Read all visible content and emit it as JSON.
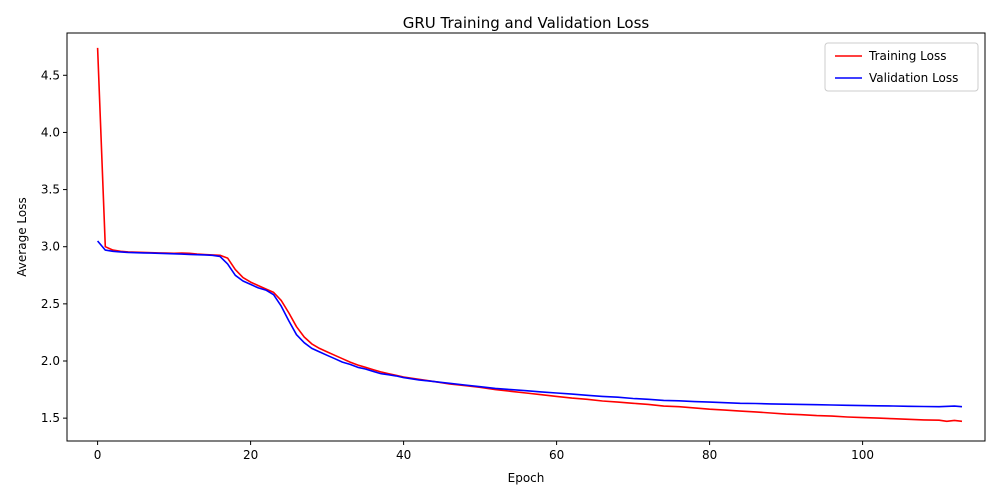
{
  "chart_data": {
    "type": "line",
    "title": "GRU Training and Validation Loss",
    "xlabel": "Epoch",
    "ylabel": "Average Loss",
    "xlim": [
      -4,
      116
    ],
    "ylim": [
      1.3,
      4.87
    ],
    "xticks": [
      0,
      20,
      40,
      60,
      80,
      100
    ],
    "yticks": [
      1.5,
      2.0,
      2.5,
      3.0,
      3.5,
      4.0,
      4.5
    ],
    "xtick_labels": [
      "0",
      "20",
      "40",
      "60",
      "80",
      "100"
    ],
    "ytick_labels": [
      "1.5",
      "2.0",
      "2.5",
      "3.0",
      "3.5",
      "4.0",
      "4.5"
    ],
    "grid": false,
    "legend_position": "top-right",
    "series": [
      {
        "name": "Training Loss",
        "color": "#ff0000",
        "points": [
          [
            0,
            4.74
          ],
          [
            1,
            3.0
          ],
          [
            2,
            2.97
          ],
          [
            3,
            2.96
          ],
          [
            4,
            2.955
          ],
          [
            5,
            2.952
          ],
          [
            6,
            2.95
          ],
          [
            7,
            2.948
          ],
          [
            8,
            2.946
          ],
          [
            9,
            2.944
          ],
          [
            10,
            2.942
          ],
          [
            11,
            2.945
          ],
          [
            12,
            2.942
          ],
          [
            13,
            2.935
          ],
          [
            14,
            2.932
          ],
          [
            15,
            2.928
          ],
          [
            16,
            2.925
          ],
          [
            17,
            2.9
          ],
          [
            18,
            2.8
          ],
          [
            19,
            2.73
          ],
          [
            20,
            2.69
          ],
          [
            21,
            2.66
          ],
          [
            22,
            2.63
          ],
          [
            23,
            2.6
          ],
          [
            24,
            2.53
          ],
          [
            25,
            2.42
          ],
          [
            26,
            2.3
          ],
          [
            27,
            2.21
          ],
          [
            28,
            2.15
          ],
          [
            29,
            2.11
          ],
          [
            30,
            2.08
          ],
          [
            31,
            2.05
          ],
          [
            32,
            2.02
          ],
          [
            33,
            1.99
          ],
          [
            34,
            1.965
          ],
          [
            35,
            1.945
          ],
          [
            36,
            1.925
          ],
          [
            37,
            1.905
          ],
          [
            38,
            1.89
          ],
          [
            39,
            1.875
          ],
          [
            40,
            1.86
          ],
          [
            42,
            1.84
          ],
          [
            44,
            1.82
          ],
          [
            46,
            1.8
          ],
          [
            48,
            1.785
          ],
          [
            50,
            1.77
          ],
          [
            52,
            1.75
          ],
          [
            54,
            1.735
          ],
          [
            56,
            1.72
          ],
          [
            58,
            1.705
          ],
          [
            60,
            1.69
          ],
          [
            62,
            1.675
          ],
          [
            64,
            1.665
          ],
          [
            66,
            1.65
          ],
          [
            68,
            1.64
          ],
          [
            70,
            1.63
          ],
          [
            72,
            1.62
          ],
          [
            74,
            1.605
          ],
          [
            76,
            1.6
          ],
          [
            78,
            1.59
          ],
          [
            80,
            1.578
          ],
          [
            82,
            1.57
          ],
          [
            84,
            1.562
          ],
          [
            86,
            1.555
          ],
          [
            88,
            1.545
          ],
          [
            90,
            1.535
          ],
          [
            92,
            1.53
          ],
          [
            94,
            1.522
          ],
          [
            96,
            1.518
          ],
          [
            98,
            1.51
          ],
          [
            100,
            1.505
          ],
          [
            102,
            1.5
          ],
          [
            104,
            1.495
          ],
          [
            106,
            1.49
          ],
          [
            108,
            1.485
          ],
          [
            110,
            1.482
          ],
          [
            111,
            1.472
          ],
          [
            112,
            1.48
          ],
          [
            113,
            1.472
          ]
        ]
      },
      {
        "name": "Validation Loss",
        "color": "#0000ff",
        "points": [
          [
            0,
            3.05
          ],
          [
            1,
            2.97
          ],
          [
            2,
            2.96
          ],
          [
            3,
            2.955
          ],
          [
            4,
            2.95
          ],
          [
            5,
            2.948
          ],
          [
            6,
            2.946
          ],
          [
            7,
            2.944
          ],
          [
            8,
            2.942
          ],
          [
            9,
            2.94
          ],
          [
            10,
            2.938
          ],
          [
            11,
            2.935
          ],
          [
            12,
            2.933
          ],
          [
            13,
            2.93
          ],
          [
            14,
            2.928
          ],
          [
            15,
            2.925
          ],
          [
            16,
            2.915
          ],
          [
            17,
            2.85
          ],
          [
            18,
            2.75
          ],
          [
            19,
            2.7
          ],
          [
            20,
            2.67
          ],
          [
            21,
            2.64
          ],
          [
            22,
            2.62
          ],
          [
            23,
            2.58
          ],
          [
            24,
            2.48
          ],
          [
            25,
            2.35
          ],
          [
            26,
            2.23
          ],
          [
            27,
            2.16
          ],
          [
            28,
            2.11
          ],
          [
            29,
            2.08
          ],
          [
            30,
            2.05
          ],
          [
            31,
            2.02
          ],
          [
            32,
            1.99
          ],
          [
            33,
            1.97
          ],
          [
            34,
            1.945
          ],
          [
            35,
            1.93
          ],
          [
            36,
            1.91
          ],
          [
            37,
            1.89
          ],
          [
            38,
            1.88
          ],
          [
            39,
            1.87
          ],
          [
            40,
            1.855
          ],
          [
            42,
            1.835
          ],
          [
            44,
            1.82
          ],
          [
            46,
            1.805
          ],
          [
            48,
            1.79
          ],
          [
            50,
            1.775
          ],
          [
            52,
            1.76
          ],
          [
            54,
            1.75
          ],
          [
            56,
            1.74
          ],
          [
            58,
            1.73
          ],
          [
            60,
            1.72
          ],
          [
            62,
            1.71
          ],
          [
            64,
            1.7
          ],
          [
            66,
            1.69
          ],
          [
            68,
            1.683
          ],
          [
            70,
            1.672
          ],
          [
            72,
            1.665
          ],
          [
            74,
            1.655
          ],
          [
            76,
            1.652
          ],
          [
            78,
            1.645
          ],
          [
            80,
            1.64
          ],
          [
            82,
            1.635
          ],
          [
            84,
            1.63
          ],
          [
            86,
            1.628
          ],
          [
            88,
            1.625
          ],
          [
            90,
            1.622
          ],
          [
            92,
            1.62
          ],
          [
            94,
            1.618
          ],
          [
            96,
            1.615
          ],
          [
            98,
            1.612
          ],
          [
            100,
            1.61
          ],
          [
            102,
            1.608
          ],
          [
            104,
            1.606
          ],
          [
            106,
            1.604
          ],
          [
            108,
            1.602
          ],
          [
            110,
            1.6
          ],
          [
            112,
            1.605
          ],
          [
            113,
            1.6
          ]
        ]
      }
    ]
  }
}
